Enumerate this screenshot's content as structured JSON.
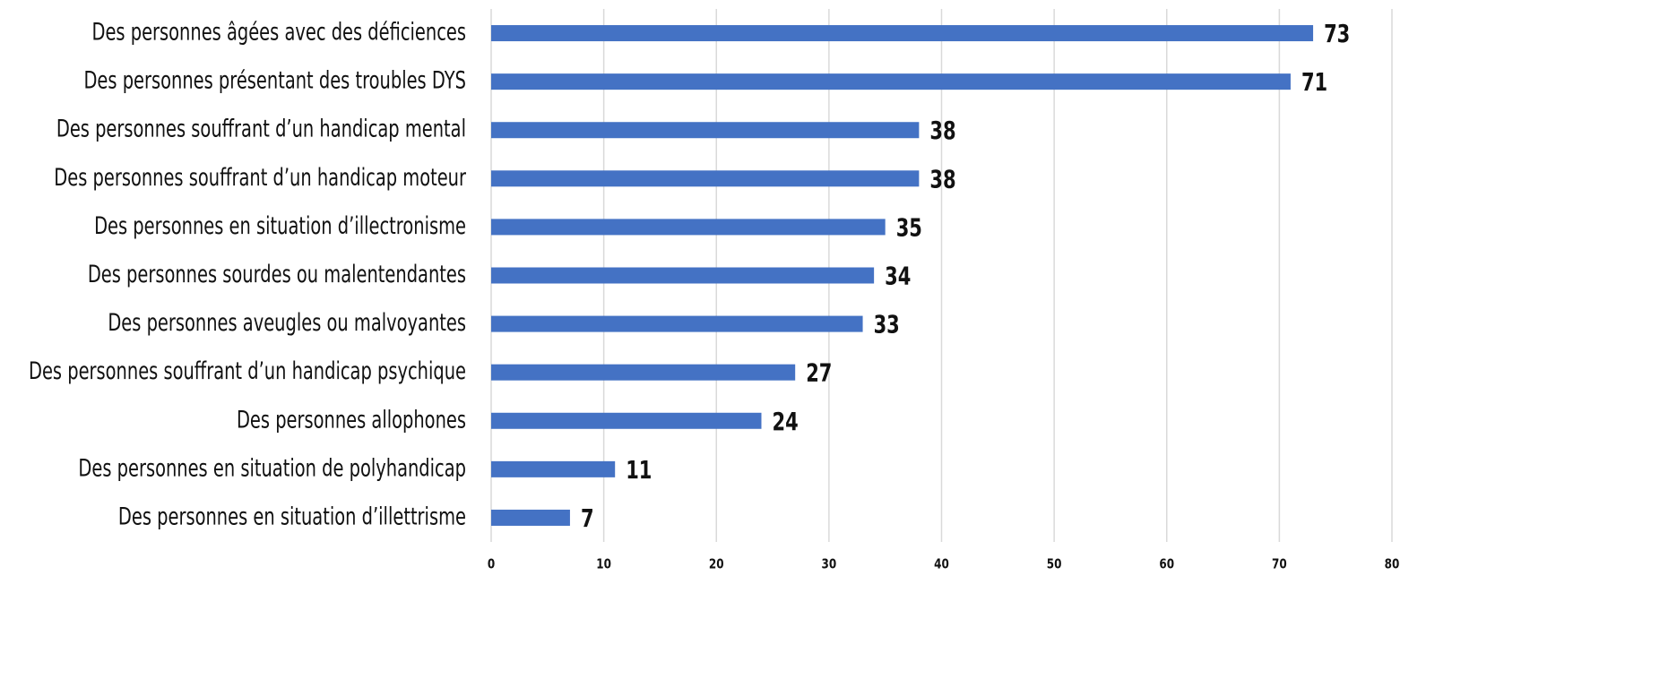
{
  "chart_data": {
    "type": "barh",
    "categories": [
      "Des personnes âgées avec des déficiences",
      "Des personnes présentant des troubles DYS",
      "Des personnes souffrant d’un handicap mental",
      "Des personnes souffrant d’un handicap moteur",
      "Des personnes en situation d’illectronisme",
      "Des personnes sourdes ou malentendantes",
      "Des personnes aveugles ou malvoyantes",
      "Des personnes souffrant d’un handicap psychique",
      "Des personnes allophones",
      "Des personnes en situation de polyhandicap",
      "Des personnes en situation d’illettrisme"
    ],
    "values": [
      73,
      71,
      38,
      38,
      35,
      34,
      33,
      27,
      24,
      11,
      7
    ],
    "color": "#4472c4",
    "xlim": [
      0,
      80
    ],
    "xticks": [
      0,
      10,
      20,
      30,
      40,
      50,
      60,
      70,
      80
    ],
    "grid": true
  }
}
